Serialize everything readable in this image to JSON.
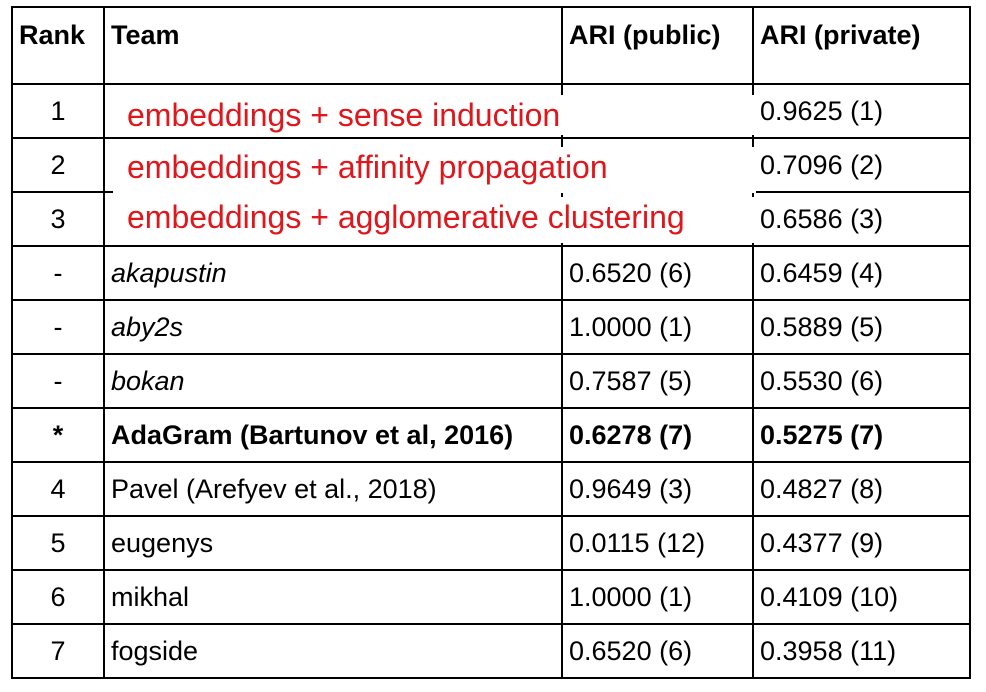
{
  "table": {
    "headers": {
      "rank": "Rank",
      "team": "Team",
      "public": "ARI (public)",
      "private": "ARI (private)"
    },
    "rows": [
      {
        "rank": "1",
        "team": "",
        "public": "",
        "private": "0.9625 (1)"
      },
      {
        "rank": "2",
        "team": "",
        "public": "",
        "private": "0.7096 (2)"
      },
      {
        "rank": "3",
        "team": "",
        "public": "",
        "private": "0.6586 (3)"
      },
      {
        "rank": "-",
        "team": "akapustin",
        "public": "0.6520 (6)",
        "private": "0.6459 (4)"
      },
      {
        "rank": "-",
        "team": "aby2s",
        "public": "1.0000 (1)",
        "private": "0.5889 (5)"
      },
      {
        "rank": "-",
        "team": "bokan",
        "public": "0.7587 (5)",
        "private": "0.5530 (6)"
      },
      {
        "rank": "*",
        "team": "AdaGram (Bartunov et al, 2016)",
        "public": "0.6278 (7)",
        "private": "0.5275 (7)"
      },
      {
        "rank": "4",
        "team": "Pavel (Arefyev et al., 2018)",
        "public": "0.9649 (3)",
        "private": "0.4827 (8)"
      },
      {
        "rank": "5",
        "team": "eugenys",
        "public": "0.0115 (12)",
        "private": "0.4377 (9)"
      },
      {
        "rank": "6",
        "team": "mikhal",
        "public": "1.0000 (1)",
        "private": "0.4109 (10)"
      },
      {
        "rank": "7",
        "team": "fogside",
        "public": "0.6520 (6)",
        "private": "0.3958 (11)"
      }
    ]
  },
  "overlays": {
    "row1": "embeddings + sense induction",
    "row2": "embeddings + affinity propagation",
    "row3": "embeddings + agglomerative clustering"
  },
  "colors": {
    "overlay_text": "#e0161b",
    "border": "#000000"
  }
}
